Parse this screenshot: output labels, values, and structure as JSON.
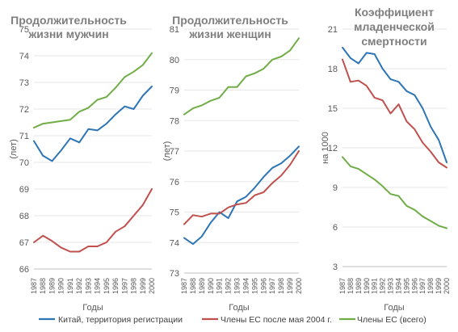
{
  "chart_data": [
    {
      "type": "line",
      "title_lines": [
        "Продолжительность",
        "жизни мужчин"
      ],
      "xlabel": "Годы",
      "ylabel": "(лет)",
      "ylim": [
        66,
        75
      ],
      "yticks": [
        66,
        67,
        68,
        69,
        70,
        71,
        72,
        73,
        74,
        75
      ],
      "grid": true,
      "x": [
        "1987",
        "1988",
        "1989",
        "1990",
        "1991",
        "1992",
        "1993",
        "1994",
        "1995",
        "1996",
        "1997",
        "1998",
        "1999",
        "2000"
      ],
      "series": [
        {
          "name": "Китай, территория регистрации",
          "color": "#2e75b6",
          "values": [
            70.8,
            70.25,
            70.05,
            70.45,
            70.9,
            70.75,
            71.25,
            71.2,
            71.45,
            71.8,
            72.1,
            72.0,
            72.5,
            72.85
          ]
        },
        {
          "name": "Члены ЕС после мая 2004 г.",
          "color": "#c0504d",
          "values": [
            67.0,
            67.25,
            67.05,
            66.8,
            66.65,
            66.65,
            66.85,
            66.85,
            67.0,
            67.4,
            67.6,
            68.0,
            68.4,
            69.0
          ]
        },
        {
          "name": "Члены ЕС (всего)",
          "color": "#70ad47",
          "values": [
            71.3,
            71.45,
            71.5,
            71.55,
            71.6,
            71.9,
            72.05,
            72.35,
            72.45,
            72.8,
            73.2,
            73.4,
            73.65,
            74.1
          ]
        }
      ]
    },
    {
      "type": "line",
      "title_lines": [
        "Продолжительность",
        "жизни женщин"
      ],
      "xlabel": "Годы",
      "ylabel": "(лет)",
      "ylim": [
        73,
        81
      ],
      "yticks": [
        73,
        74,
        75,
        76,
        77,
        78,
        79,
        80,
        81
      ],
      "grid": true,
      "x": [
        "1987",
        "1988",
        "1989",
        "1990",
        "1991",
        "1992",
        "1993",
        "1994",
        "1995",
        "1996",
        "1997",
        "1998",
        "1999",
        "2000"
      ],
      "series": [
        {
          "name": "Китай, территория регистрации",
          "color": "#2e75b6",
          "values": [
            74.15,
            73.95,
            74.2,
            74.65,
            75.0,
            74.8,
            75.35,
            75.5,
            75.8,
            76.15,
            76.45,
            76.6,
            76.85,
            77.15
          ]
        },
        {
          "name": "Члены ЕС после мая 2004 г.",
          "color": "#c0504d",
          "values": [
            74.6,
            74.9,
            74.85,
            74.95,
            74.95,
            75.15,
            75.25,
            75.3,
            75.55,
            75.65,
            75.95,
            76.2,
            76.55,
            77.0
          ]
        },
        {
          "name": "Члены ЕС (всего)",
          "color": "#70ad47",
          "values": [
            78.2,
            78.4,
            78.5,
            78.65,
            78.75,
            79.1,
            79.1,
            79.45,
            79.55,
            79.7,
            80.0,
            80.1,
            80.3,
            80.7
          ]
        }
      ]
    },
    {
      "type": "line",
      "title_lines": [
        "Коэффициент",
        "младенческой",
        "смертности"
      ],
      "xlabel": "Годы",
      "ylabel": "на 1000",
      "ylim": [
        3,
        21
      ],
      "yticks": [
        3,
        6,
        9,
        12,
        15,
        18,
        21
      ],
      "grid": true,
      "x": [
        "1987",
        "1988",
        "1989",
        "1990",
        "1991",
        "1992",
        "1993",
        "1994",
        "1995",
        "1996",
        "1997",
        "1998",
        "1999",
        "2000"
      ],
      "series": [
        {
          "name": "Китай, территория регистрации",
          "color": "#2e75b6",
          "values": [
            19.6,
            18.8,
            18.4,
            19.2,
            19.1,
            18.0,
            17.2,
            17.0,
            16.3,
            16.0,
            15.0,
            13.6,
            12.6,
            10.9
          ]
        },
        {
          "name": "Члены ЕС после мая 2004 г.",
          "color": "#c0504d",
          "values": [
            18.7,
            17.0,
            17.1,
            16.7,
            15.8,
            15.6,
            14.6,
            15.3,
            14.0,
            13.4,
            12.4,
            11.7,
            10.9,
            10.5
          ]
        },
        {
          "name": "Члены ЕС (всего)",
          "color": "#70ad47",
          "values": [
            11.3,
            10.6,
            10.4,
            10.0,
            9.6,
            9.1,
            8.5,
            8.35,
            7.6,
            7.3,
            6.8,
            6.45,
            6.1,
            5.9
          ]
        }
      ]
    }
  ],
  "legend": [
    {
      "label": "Китай, территория регистрации",
      "color": "#2e75b6"
    },
    {
      "label": "Члены ЕС после мая 2004 г.",
      "color": "#c0504d"
    },
    {
      "label": "Члены ЕС (всего)",
      "color": "#70ad47"
    }
  ]
}
